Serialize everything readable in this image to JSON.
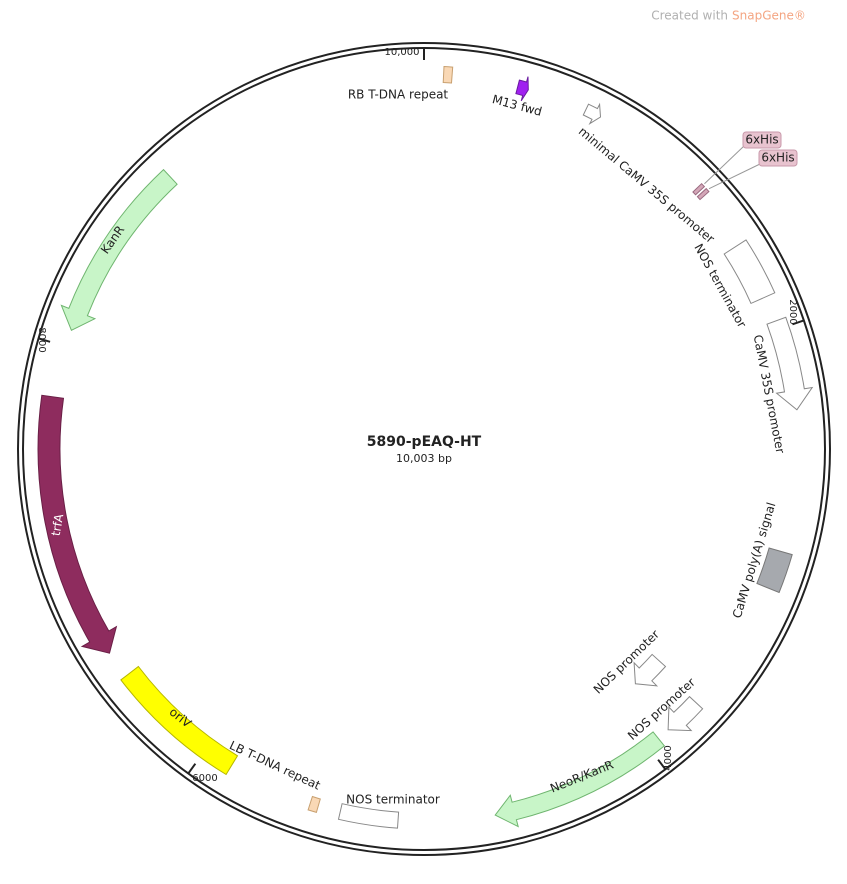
{
  "watermark": {
    "prefix": "Created with",
    "brand": "SnapGene®"
  },
  "map": {
    "name": "5890-pEAQ-HT",
    "length": "10,003 bp",
    "ticks": [
      "10,000",
      "2000",
      "4000",
      "6000",
      "8000"
    ],
    "features": [
      "RB T-DNA repeat",
      "M13 fwd",
      "minimal CaMV 35S promoter",
      "6xHis",
      "6xHis",
      "NOS terminator",
      "CaMV 35S promoter",
      "CaMV poly(A) signal",
      "NOS promoter",
      "NOS promoter",
      "NeoR/KanR",
      "NOS terminator",
      "LB T-DNA repeat",
      "oriV",
      "trfA",
      "KanR"
    ]
  }
}
